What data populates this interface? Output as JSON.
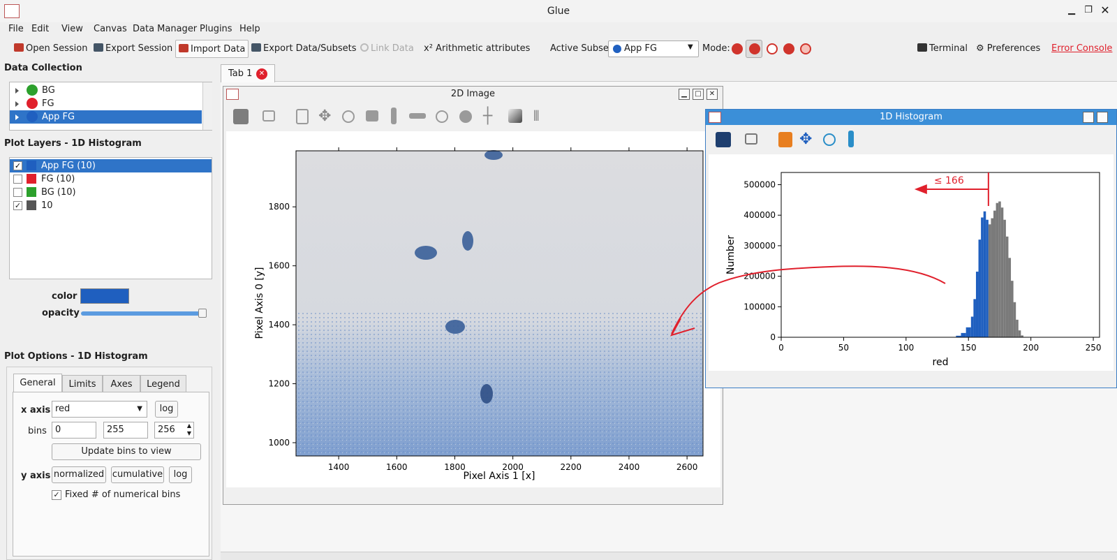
{
  "window": {
    "title": "Glue"
  },
  "menu": [
    "File",
    "Edit",
    "View",
    "Canvas",
    "Data Manager",
    "Plugins",
    "Help"
  ],
  "toolbar": {
    "open_session": "Open Session",
    "export_session": "Export Session",
    "import_data": "Import Data",
    "export_data": "Export Data/Subsets",
    "link_data": "Link Data",
    "arith_sym": "x²",
    "arith": "Arithmetic attributes",
    "active_subset_label": "Active Subset:",
    "active_subset_value": "App FG",
    "mode_label": "Mode:",
    "terminal": "Terminal",
    "preferences": "Preferences",
    "error_console": "Error Console"
  },
  "data_collection": {
    "title": "Data Collection",
    "items": [
      {
        "label": "BG",
        "color": "#2ca02c"
      },
      {
        "label": "FG",
        "color": "#e0202c"
      },
      {
        "label": "App FG",
        "color": "#2060c0"
      }
    ]
  },
  "plot_layers": {
    "title": "Plot Layers - 1D Histogram",
    "items": [
      {
        "label": "App FG (10)",
        "color": "#1f5fbf",
        "checked": true
      },
      {
        "label": "FG (10)",
        "color": "#e0202c",
        "checked": false
      },
      {
        "label": "BG (10)",
        "color": "#2ca02c",
        "checked": false
      },
      {
        "label": "10",
        "color": "#555555",
        "checked": true
      }
    ],
    "check_mark": "✓",
    "color_label": "color",
    "opacity_label": "opacity",
    "opacity_value": 1.0
  },
  "plot_options": {
    "title": "Plot Options - 1D Histogram",
    "tabs": [
      "General",
      "Limits",
      "Axes",
      "Legend"
    ],
    "x_axis_label": "x axis",
    "x_axis_value": "red",
    "log": "log",
    "bins_label": "bins",
    "bins_min": "0",
    "bins_max": "255",
    "bins_n": "256",
    "update_bins": "Update bins to view",
    "y_axis_label": "y axis",
    "normalized": "normalized",
    "cumulative": "cumulative",
    "fixed_bins": "Fixed # of numerical bins"
  },
  "canvas_tab": {
    "label": "Tab 1"
  },
  "image_window": {
    "title": "2D Image",
    "xlabel": "Pixel Axis 1 [x]",
    "ylabel": "Pixel Axis 0 [y]",
    "xticks": [
      "1400",
      "1600",
      "1800",
      "2000",
      "2200",
      "2400",
      "2600"
    ],
    "yticks": [
      "1000",
      "1200",
      "1400",
      "1600",
      "1800"
    ]
  },
  "histogram_window": {
    "title": "1D Histogram",
    "annotation": "≤ 166"
  },
  "chart_data": {
    "type": "bar",
    "xlabel": "red",
    "ylabel": "Number",
    "xlim": [
      0,
      255
    ],
    "ylim": [
      0,
      540000
    ],
    "xticks": [
      "0",
      "50",
      "100",
      "150",
      "200",
      "250"
    ],
    "yticks": [
      "0",
      "100000",
      "200000",
      "300000",
      "400000",
      "500000"
    ],
    "threshold": 166,
    "series": [
      {
        "color": "#1f5fbf",
        "x": [
          140,
          144,
          148,
          152,
          154,
          156,
          158,
          160,
          162,
          164,
          166
        ],
        "values": [
          2000,
          8000,
          20000,
          45000,
          90000,
          160000,
          270000,
          370000,
          415000,
          410000,
          360000
        ]
      },
      {
        "color": "#7a7a7a",
        "x": [
          166,
          168,
          170,
          172,
          174,
          176,
          178,
          180,
          182,
          184,
          186,
          188,
          190,
          192,
          194
        ],
        "values": [
          360000,
          380000,
          400000,
          430000,
          450000,
          440000,
          410000,
          360000,
          300000,
          220000,
          150000,
          80000,
          35000,
          10000,
          2000
        ]
      }
    ]
  }
}
